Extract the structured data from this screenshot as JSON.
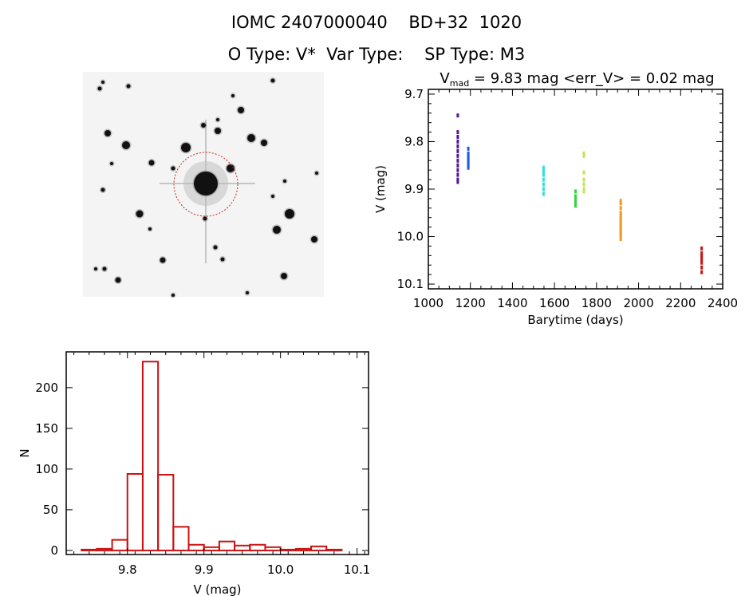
{
  "header": {
    "title": "IOMC 2407000040    BD+32  1020",
    "subtitle": "O Type: V*  Var Type:    SP Type: M3"
  },
  "image_panel": {
    "description_icon": "star-field-image"
  },
  "chart_data": [
    {
      "type": "scatter",
      "title_prefix": "V",
      "title_sub": "mad",
      "title_rest": " = 9.83 mag <err_V> = 0.02 mag",
      "xlabel": "Barytime (days)",
      "ylabel": "V (mag)",
      "xlim": [
        1000,
        2400
      ],
      "ylim": [
        10.11,
        9.69
      ],
      "y_inverted": true,
      "xticks": [
        1000,
        1200,
        1400,
        1600,
        1800,
        2000,
        2200,
        2400
      ],
      "yticks": [
        9.7,
        9.8,
        9.9,
        10.0,
        10.1
      ],
      "xtick_labels": [
        "1000",
        "1200",
        "1400",
        "1600",
        "1800",
        "2000",
        "2200",
        "2400"
      ],
      "ytick_labels": [
        "9.7",
        "9.8",
        "9.9",
        "10.0",
        "10.1"
      ],
      "grid": false,
      "series": [
        {
          "color": "#55188f",
          "points": [
            [
              1140,
              9.745
            ],
            [
              1140,
              9.78
            ],
            [
              1140,
              9.79
            ],
            [
              1140,
              9.8
            ],
            [
              1140,
              9.81
            ],
            [
              1140,
              9.82
            ],
            [
              1140,
              9.83
            ],
            [
              1140,
              9.84
            ],
            [
              1140,
              9.85
            ],
            [
              1140,
              9.86
            ],
            [
              1140,
              9.87
            ],
            [
              1140,
              9.88
            ],
            [
              1140,
              9.885
            ]
          ]
        },
        {
          "color": "#1f5ad8",
          "points": [
            [
              1190,
              9.815
            ],
            [
              1190,
              9.825
            ],
            [
              1190,
              9.83
            ],
            [
              1190,
              9.835
            ],
            [
              1190,
              9.84
            ],
            [
              1190,
              9.845
            ],
            [
              1190,
              9.85
            ],
            [
              1190,
              9.855
            ]
          ]
        },
        {
          "color": "#33dddd",
          "points": [
            [
              1548,
              9.855
            ],
            [
              1548,
              9.862
            ],
            [
              1548,
              9.87
            ],
            [
              1548,
              9.88
            ],
            [
              1548,
              9.89
            ],
            [
              1548,
              9.9
            ],
            [
              1548,
              9.91
            ]
          ]
        },
        {
          "color": "#33d63a",
          "points": [
            [
              1700,
              9.905
            ],
            [
              1700,
              9.915
            ],
            [
              1700,
              9.92
            ],
            [
              1700,
              9.925
            ],
            [
              1700,
              9.93
            ],
            [
              1700,
              9.935
            ]
          ]
        },
        {
          "color": "#c6e24c",
          "points": [
            [
              1740,
              9.825
            ],
            [
              1740,
              9.83
            ],
            [
              1740,
              9.865
            ],
            [
              1740,
              9.88
            ],
            [
              1740,
              9.89
            ],
            [
              1740,
              9.9
            ],
            [
              1740,
              9.905
            ]
          ]
        },
        {
          "color": "#ee9a22",
          "points": [
            [
              1915,
              9.925
            ],
            [
              1915,
              9.93
            ],
            [
              1915,
              9.94
            ],
            [
              1915,
              9.95
            ],
            [
              1915,
              9.955
            ],
            [
              1915,
              9.96
            ],
            [
              1915,
              9.965
            ],
            [
              1915,
              9.97
            ],
            [
              1915,
              9.975
            ],
            [
              1915,
              9.98
            ],
            [
              1915,
              9.985
            ],
            [
              1915,
              9.99
            ],
            [
              1915,
              9.995
            ],
            [
              1915,
              10.0
            ],
            [
              1915,
              10.005
            ]
          ]
        },
        {
          "color": "#cc1616",
          "points": [
            [
              2300,
              10.025
            ],
            [
              2300,
              10.035
            ],
            [
              2300,
              10.04
            ],
            [
              2300,
              10.045
            ],
            [
              2300,
              10.05
            ],
            [
              2300,
              10.055
            ],
            [
              2300,
              10.065
            ],
            [
              2300,
              10.075
            ]
          ]
        }
      ]
    },
    {
      "type": "bar",
      "subtype": "histogram",
      "xlabel": "V (mag)",
      "ylabel": "N",
      "xlim": [
        9.72,
        10.115
      ],
      "ylim": [
        -5,
        244
      ],
      "xticks": [
        9.8,
        9.9,
        10.0,
        10.1
      ],
      "xtick_labels": [
        "9.8",
        "9.9",
        "10.0",
        "10.1"
      ],
      "yticks": [
        0,
        50,
        100,
        150,
        200
      ],
      "ytick_labels": [
        "0",
        "50",
        "100",
        "150",
        "200"
      ],
      "grid": false,
      "color": "#cc1111",
      "bin_edges": [
        9.74,
        9.76,
        9.78,
        9.8,
        9.82,
        9.84,
        9.86,
        9.88,
        9.9,
        9.92,
        9.94,
        9.96,
        9.98,
        10.0,
        10.02,
        10.04,
        10.06,
        10.08
      ],
      "values": [
        1,
        2,
        13,
        94,
        232,
        93,
        29,
        7,
        4,
        11,
        6,
        7,
        4,
        1,
        2,
        5,
        1
      ]
    }
  ]
}
